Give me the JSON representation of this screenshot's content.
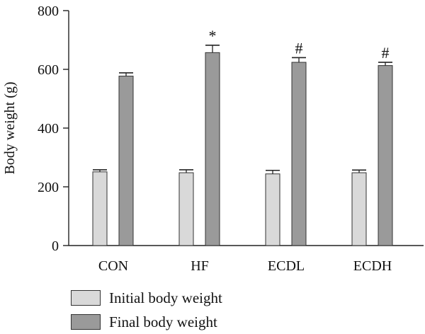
{
  "chart_data": {
    "type": "bar",
    "title": "",
    "xlabel": "",
    "ylabel": "Body weight (g)",
    "ylim": [
      0,
      800
    ],
    "yticks": [
      0,
      200,
      400,
      600,
      800
    ],
    "grid": false,
    "legend_position": "bottom-left",
    "categories": [
      "CON",
      "HF",
      "ECDL",
      "ECDH"
    ],
    "series": [
      {
        "name": "Initial body weight",
        "color": "#d9d9d9",
        "values": [
          251,
          248,
          244,
          248
        ],
        "errors": [
          7,
          10,
          12,
          9
        ]
      },
      {
        "name": "Final body weight",
        "color": "#9a9a9a",
        "values": [
          577,
          657,
          624,
          613
        ],
        "errors": [
          11,
          25,
          16,
          11
        ]
      }
    ],
    "annotations": [
      "",
      "*",
      "#",
      "#"
    ]
  }
}
